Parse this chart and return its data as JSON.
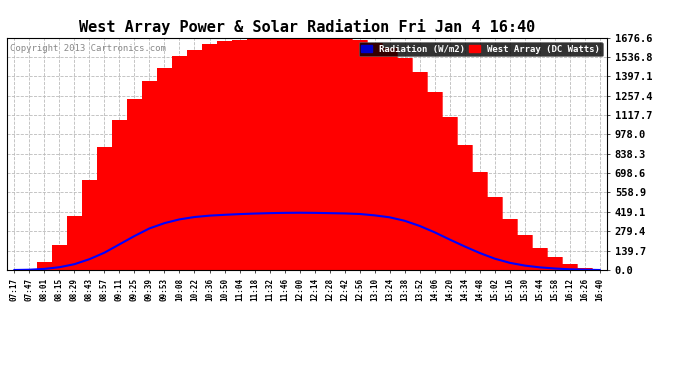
{
  "title": "West Array Power & Solar Radiation Fri Jan 4 16:40",
  "copyright": "Copyright 2013 Cartronics.com",
  "yticks": [
    0.0,
    139.7,
    279.4,
    419.1,
    558.9,
    698.6,
    838.3,
    978.0,
    1117.7,
    1257.4,
    1397.1,
    1536.8,
    1676.6
  ],
  "ymax": 1676.6,
  "legend_radiation": "Radiation (W/m2)",
  "legend_west": "West Array (DC Watts)",
  "bg_color": "#ffffff",
  "plot_bg_color": "#ffffff",
  "grid_color": "#bbbbbb",
  "fill_color": "#ff0000",
  "radiation_line_color": "#0000ff",
  "title_fontsize": 11,
  "time_labels": [
    "07:17",
    "07:47",
    "08:01",
    "08:15",
    "08:29",
    "08:43",
    "08:57",
    "09:11",
    "09:25",
    "09:39",
    "09:53",
    "10:08",
    "10:22",
    "10:36",
    "10:50",
    "11:04",
    "11:18",
    "11:32",
    "11:46",
    "12:00",
    "12:14",
    "12:28",
    "12:42",
    "12:56",
    "13:10",
    "13:24",
    "13:38",
    "13:52",
    "14:06",
    "14:20",
    "14:34",
    "14:48",
    "15:02",
    "15:16",
    "15:30",
    "15:44",
    "15:58",
    "16:12",
    "16:26",
    "16:40"
  ],
  "west_array_watts": [
    0,
    10,
    55,
    180,
    390,
    650,
    890,
    1080,
    1230,
    1360,
    1460,
    1540,
    1590,
    1630,
    1650,
    1660,
    1665,
    1668,
    1670,
    1672,
    1670,
    1668,
    1665,
    1660,
    1640,
    1600,
    1530,
    1430,
    1280,
    1100,
    900,
    710,
    530,
    370,
    250,
    160,
    95,
    45,
    15,
    3
  ],
  "radiation_w_m2": [
    0,
    2,
    8,
    20,
    42,
    78,
    125,
    185,
    245,
    300,
    338,
    365,
    382,
    392,
    398,
    403,
    407,
    410,
    412,
    413,
    412,
    410,
    408,
    404,
    394,
    380,
    355,
    318,
    272,
    220,
    170,
    123,
    82,
    52,
    32,
    19,
    11,
    5,
    2,
    0
  ]
}
